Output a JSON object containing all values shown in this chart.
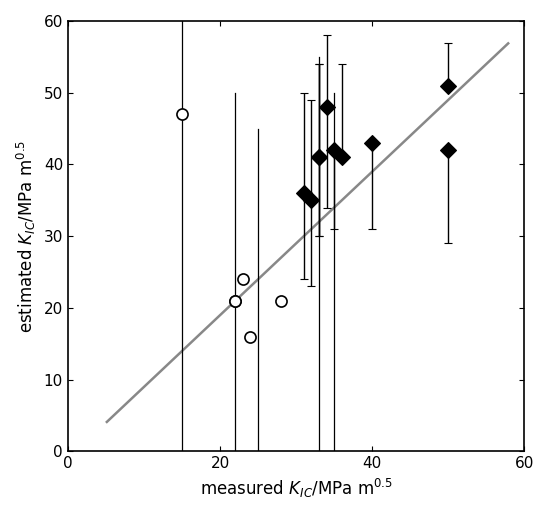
{
  "title": "",
  "xlabel": "measured $K_{IC}$/MPa m$^{0.5}$",
  "ylabel": "estimated $K_{IC}$/MPa m$^{0.5}$",
  "xlim": [
    0,
    60
  ],
  "ylim": [
    0,
    60
  ],
  "xticks": [
    0,
    20,
    40,
    60
  ],
  "yticks": [
    0,
    10,
    20,
    30,
    40,
    50,
    60
  ],
  "line_x": [
    5,
    58
  ],
  "line_y": [
    4,
    57
  ],
  "line_color": "#888888",
  "open_circles": {
    "x": [
      15,
      22,
      22,
      23,
      24,
      28
    ],
    "y": [
      47,
      21,
      21,
      24,
      16,
      21
    ],
    "yerr_lo": [
      0,
      0,
      0,
      0,
      0,
      0
    ],
    "yerr_hi": [
      0,
      0,
      0,
      0,
      0,
      0
    ],
    "xline": [
      15,
      22,
      25
    ],
    "xline_ybot": [
      0,
      0,
      0
    ],
    "xline_ytop": [
      60,
      50,
      50
    ]
  },
  "filled_diamonds": {
    "x": [
      31,
      32,
      33,
      33,
      34,
      35,
      36,
      40,
      50,
      50
    ],
    "y": [
      36,
      35,
      41,
      41,
      48,
      42,
      41,
      43,
      51,
      42
    ],
    "yerr_lo": [
      12,
      12,
      11,
      11,
      14,
      11,
      0,
      12,
      0,
      13
    ],
    "yerr_hi": [
      14,
      14,
      13,
      13,
      10,
      0,
      13,
      0,
      6,
      0
    ],
    "xline_x": [
      33,
      35
    ],
    "xline_ybot": [
      0,
      0
    ],
    "xline_ytop": [
      55,
      50
    ]
  },
  "marker_size": 8,
  "background_color": "white"
}
